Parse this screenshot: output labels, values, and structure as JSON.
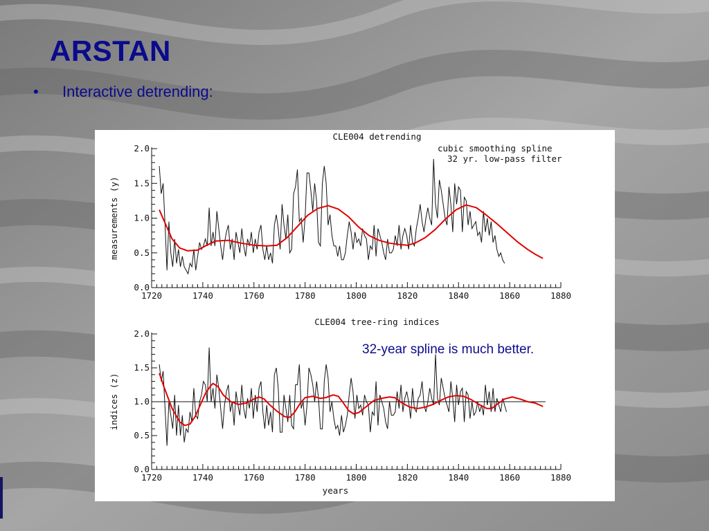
{
  "slide": {
    "title": "ARSTAN",
    "bullet_symbol": "•",
    "bullet_text": "Interactive detrending:",
    "annotation": "32-year spline is much better."
  },
  "colors": {
    "title": "#0b0b8c",
    "raw_series": "#111111",
    "spline": "#e00000",
    "panel_bg": "#ffffff"
  },
  "chart_data": [
    {
      "type": "line",
      "title": "CLE004 detrending",
      "xlabel": "",
      "ylabel": "measurements (y)",
      "xlim": [
        1720,
        1880
      ],
      "ylim": [
        0.0,
        2.0
      ],
      "xticks": [
        1720,
        1740,
        1760,
        1780,
        1800,
        1820,
        1840,
        1860,
        1880
      ],
      "yticks": [
        0.0,
        0.5,
        1.0,
        1.5,
        2.0
      ],
      "ytick_labels": [
        "0.0",
        "0.5",
        "1.0",
        "1.5",
        "2.0"
      ],
      "legend_text": [
        "cubic smoothing spline",
        "32 yr. low-pass filter"
      ],
      "series": [
        {
          "values_start_year": 1723,
          "values": [
            1.75,
            1.35,
            1.5,
            0.9,
            0.25,
            0.95,
            0.5,
            0.3,
            0.7,
            0.35,
            0.55,
            0.3,
            0.45,
            0.3,
            0.25,
            0.2,
            0.35,
            0.3,
            0.55,
            0.25,
            0.45,
            0.65,
            0.55,
            0.6,
            0.7,
            0.6,
            1.15,
            0.6,
            0.8,
            0.6,
            1.1,
            0.85,
            0.6,
            0.4,
            0.65,
            0.8,
            0.9,
            0.55,
            0.7,
            0.4,
            0.8,
            0.65,
            0.5,
            0.85,
            0.6,
            0.45,
            0.7,
            0.6,
            0.8,
            0.5,
            0.7,
            0.55,
            0.8,
            0.9,
            0.55,
            0.4,
            0.6,
            0.4,
            0.5,
            0.35,
            0.9,
            1.05,
            0.85,
            0.55,
            1.2,
            0.9,
            0.7,
            1.05,
            0.5,
            0.55,
            1.35,
            1.45,
            1.7,
            0.95,
            1.0,
            0.65,
            1.0,
            1.65,
            1.65,
            1.4,
            1.1,
            1.5,
            1.25,
            0.65,
            0.6,
            1.5,
            1.75,
            1.5,
            0.9,
            1.05,
            0.75,
            0.6,
            0.6,
            0.45,
            0.6,
            0.4,
            0.4,
            0.5,
            0.75,
            0.95,
            0.8,
            0.55,
            0.8,
            0.65,
            0.7,
            0.6,
            0.85,
            0.75,
            0.7,
            0.4,
            0.6,
            0.55,
            0.9,
            0.45,
            0.85,
            0.75,
            0.65,
            0.5,
            0.4,
            0.7,
            0.5,
            0.5,
            0.55,
            0.75,
            0.6,
            0.9,
            0.55,
            0.75,
            0.85,
            0.75,
            0.55,
            0.9,
            0.65,
            0.6,
            0.85,
            1.0,
            1.2,
            0.95,
            0.8,
            1.0,
            1.15,
            1.0,
            0.9,
            1.85,
            1.2,
            1.0,
            1.55,
            1.4,
            1.2,
            1.0,
            0.9,
            1.45,
            1.2,
            0.8,
            1.5,
            1.2,
            1.45,
            1.4,
            0.8,
            1.3,
            1.25,
            0.9,
            1.1,
            0.85,
            0.9,
            0.95,
            0.75,
            0.8,
            0.65,
            1.1,
            0.8,
            1.0,
            0.75,
            0.95,
            0.65,
            0.75,
            0.55,
            0.45,
            0.5,
            0.4,
            0.35
          ]
        },
        {
          "name": "",
          "points": [
            [
              1723,
              1.12
            ],
            [
              1725,
              0.95
            ],
            [
              1728,
              0.7
            ],
            [
              1731,
              0.57
            ],
            [
              1734,
              0.53
            ],
            [
              1738,
              0.54
            ],
            [
              1741,
              0.6
            ],
            [
              1745,
              0.67
            ],
            [
              1750,
              0.68
            ],
            [
              1755,
              0.64
            ],
            [
              1760,
              0.61
            ],
            [
              1765,
              0.6
            ],
            [
              1769,
              0.61
            ],
            [
              1773,
              0.72
            ],
            [
              1777,
              0.88
            ],
            [
              1781,
              1.04
            ],
            [
              1785,
              1.14
            ],
            [
              1789,
              1.18
            ],
            [
              1793,
              1.13
            ],
            [
              1797,
              1.02
            ],
            [
              1801,
              0.87
            ],
            [
              1805,
              0.75
            ],
            [
              1809,
              0.68
            ],
            [
              1813,
              0.64
            ],
            [
              1817,
              0.62
            ],
            [
              1820,
              0.61
            ],
            [
              1823,
              0.64
            ],
            [
              1827,
              0.72
            ],
            [
              1831,
              0.84
            ],
            [
              1835,
              0.99
            ],
            [
              1839,
              1.12
            ],
            [
              1843,
              1.19
            ],
            [
              1847,
              1.15
            ],
            [
              1851,
              1.04
            ],
            [
              1855,
              0.92
            ],
            [
              1859,
              0.79
            ],
            [
              1863,
              0.66
            ],
            [
              1867,
              0.55
            ],
            [
              1870,
              0.48
            ],
            [
              1873,
              0.42
            ]
          ]
        }
      ]
    },
    {
      "type": "line",
      "title": "CLE004 tree-ring indices",
      "xlabel": "years",
      "ylabel": "indices (z)",
      "xlim": [
        1720,
        1880
      ],
      "ylim": [
        0.0,
        2.0
      ],
      "xticks": [
        1720,
        1740,
        1760,
        1780,
        1800,
        1820,
        1840,
        1860,
        1880
      ],
      "yticks": [
        0.0,
        0.5,
        1.0,
        1.5,
        2.0
      ],
      "ytick_labels": [
        "0.0",
        "0.5",
        "1.0",
        "1.5",
        "2.0"
      ],
      "reference_line": 1.0,
      "series": [
        {
          "values_start_year": 1723,
          "values": [
            1.55,
            1.3,
            1.45,
            0.9,
            0.35,
            1.0,
            0.8,
            0.6,
            1.1,
            0.5,
            0.95,
            0.5,
            0.8,
            0.4,
            0.6,
            0.55,
            0.85,
            0.7,
            1.2,
            0.8,
            0.75,
            1.0,
            1.1,
            1.3,
            1.25,
            1.0,
            1.8,
            1.0,
            1.2,
            0.9,
            1.4,
            1.2,
            0.9,
            0.6,
            0.95,
            1.15,
            1.25,
            0.85,
            1.0,
            0.65,
            1.15,
            0.95,
            0.8,
            1.25,
            0.9,
            0.75,
            1.05,
            0.9,
            1.2,
            0.75,
            1.1,
            0.85,
            1.2,
            1.3,
            0.85,
            0.6,
            0.95,
            0.65,
            0.85,
            0.55,
            1.4,
            1.5,
            1.2,
            0.55,
            0.55,
            1.1,
            0.9,
            0.7,
            1.1,
            0.65,
            0.6,
            1.25,
            1.25,
            1.55,
            0.9,
            1.0,
            0.65,
            0.95,
            1.5,
            1.4,
            1.25,
            1.0,
            1.3,
            1.05,
            0.6,
            0.6,
            1.3,
            1.55,
            1.35,
            0.85,
            1.0,
            0.75,
            0.6,
            0.65,
            0.5,
            0.8,
            0.55,
            0.65,
            0.8,
            1.1,
            1.35,
            1.15,
            0.75,
            1.1,
            0.9,
            0.95,
            0.8,
            1.1,
            1.0,
            0.95,
            0.55,
            0.85,
            0.8,
            1.3,
            0.65,
            1.1,
            1.0,
            0.9,
            0.7,
            0.6,
            1.0,
            0.8,
            0.8,
            0.85,
            1.15,
            0.9,
            1.25,
            0.85,
            1.05,
            1.15,
            1.0,
            0.75,
            1.2,
            0.9,
            0.85,
            1.05,
            1.1,
            1.3,
            0.95,
            0.85,
            1.0,
            1.2,
            1.05,
            0.95,
            1.7,
            1.05,
            0.95,
            1.35,
            1.2,
            1.05,
            0.95,
            0.85,
            1.3,
            1.05,
            0.7,
            1.25,
            0.95,
            1.15,
            1.2,
            0.7,
            1.15,
            1.1,
            0.75,
            1.0,
            0.8,
            0.85,
            1.0,
            0.85,
            0.95,
            0.8,
            1.25,
            0.95,
            1.15,
            0.85,
            1.2,
            0.85,
            1.05,
            0.95,
            0.85,
            1.05,
            0.95,
            0.85
          ]
        },
        {
          "name": "",
          "points": [
            [
              1723,
              1.42
            ],
            [
              1725,
              1.2
            ],
            [
              1728,
              0.9
            ],
            [
              1731,
              0.7
            ],
            [
              1733,
              0.65
            ],
            [
              1735,
              0.67
            ],
            [
              1737,
              0.78
            ],
            [
              1739,
              0.95
            ],
            [
              1741,
              1.12
            ],
            [
              1743,
              1.23
            ],
            [
              1744,
              1.27
            ],
            [
              1746,
              1.22
            ],
            [
              1748,
              1.1
            ],
            [
              1751,
              1.0
            ],
            [
              1754,
              0.96
            ],
            [
              1757,
              0.98
            ],
            [
              1760,
              1.04
            ],
            [
              1762,
              1.07
            ],
            [
              1764,
              1.04
            ],
            [
              1766,
              0.96
            ],
            [
              1769,
              0.86
            ],
            [
              1772,
              0.78
            ],
            [
              1774,
              0.77
            ],
            [
              1776,
              0.85
            ],
            [
              1778,
              0.97
            ],
            [
              1780,
              1.06
            ],
            [
              1783,
              1.08
            ],
            [
              1786,
              1.05
            ],
            [
              1788,
              1.06
            ],
            [
              1791,
              1.1
            ],
            [
              1793,
              1.08
            ],
            [
              1795,
              0.98
            ],
            [
              1797,
              0.87
            ],
            [
              1799,
              0.82
            ],
            [
              1801,
              0.84
            ],
            [
              1804,
              0.93
            ],
            [
              1807,
              1.02
            ],
            [
              1810,
              1.05
            ],
            [
              1813,
              1.07
            ],
            [
              1815,
              1.06
            ],
            [
              1818,
              0.98
            ],
            [
              1821,
              0.92
            ],
            [
              1824,
              0.9
            ],
            [
              1827,
              0.92
            ],
            [
              1830,
              0.96
            ],
            [
              1833,
              1.02
            ],
            [
              1836,
              1.07
            ],
            [
              1839,
              1.09
            ],
            [
              1842,
              1.08
            ],
            [
              1845,
              1.03
            ],
            [
              1848,
              0.96
            ],
            [
              1851,
              0.9
            ],
            [
              1853,
              0.9
            ],
            [
              1855,
              0.96
            ],
            [
              1858,
              1.04
            ],
            [
              1861,
              1.07
            ],
            [
              1864,
              1.04
            ],
            [
              1867,
              1.0
            ],
            [
              1870,
              0.98
            ],
            [
              1873,
              0.93
            ]
          ]
        }
      ]
    }
  ]
}
